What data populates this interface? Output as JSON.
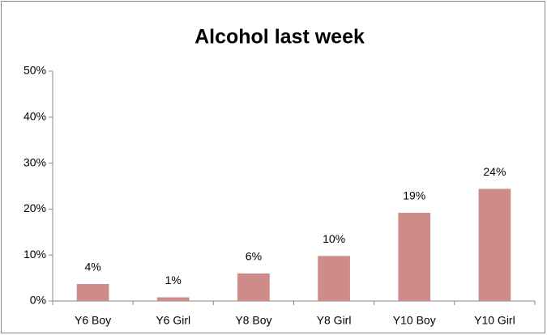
{
  "chart_data": {
    "type": "bar",
    "title": "Alcohol last week",
    "categories": [
      "Y6 Boy",
      "Y6 Girl",
      "Y8 Boy",
      "Y8 Girl",
      "Y10 Boy",
      "Y10 Girl"
    ],
    "values": [
      3.7,
      0.8,
      6,
      9.8,
      19.2,
      24.4
    ],
    "value_labels": [
      "4%",
      "1%",
      "6%",
      "10%",
      "19%",
      "24%"
    ],
    "color": "#cd8b8a",
    "ylim": [
      0,
      50
    ],
    "yticks": [
      {
        "value": 0,
        "label": "0%"
      },
      {
        "value": 10,
        "label": "10%"
      },
      {
        "value": 20,
        "label": "20%"
      },
      {
        "value": 30,
        "label": "30%"
      },
      {
        "value": 40,
        "label": "40%"
      },
      {
        "value": 50,
        "label": "50%"
      }
    ],
    "grid": false
  }
}
